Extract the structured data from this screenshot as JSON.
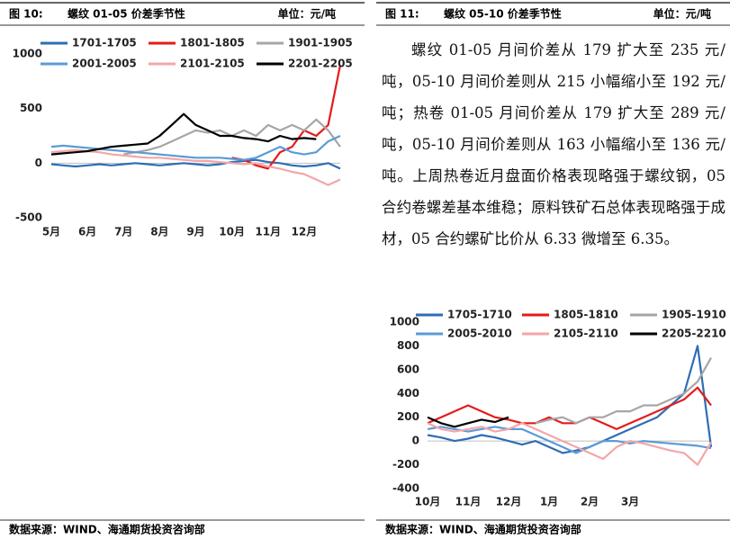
{
  "panels": [
    {
      "figure": "图 10:",
      "title": "螺纹 01-05 价差季节性",
      "unit": "单位：元/吨",
      "source": "数据来源：WIND、海通期货投资咨询部"
    },
    {
      "figure": "图 11:",
      "title": "螺纹 05-10 价差季节性",
      "unit": "单位：元/吨",
      "source": "数据来源：WIND、海通期货投资咨询部"
    }
  ],
  "paragraph": "螺纹 01-05 月间价差从 179 扩大至 235 元/吨，05-10 月间价差则从 215 小幅缩小至 192 元/吨；热卷 01-05 月间价差从 179 扩大至 289 元/吨，05-10 月间价差则从 163 小幅缩小至 136 元/吨。上周热卷近月盘面价格表现略强于螺纹钢，05 合约卷螺差基本维稳；原料铁矿石总体表现略强于成材，05 合约螺矿比价从 6.33 微增至 6.35。",
  "chart_data": [
    {
      "type": "line",
      "categories": [
        "5月",
        null,
        null,
        "6月",
        null,
        null,
        "7月",
        null,
        null,
        "8月",
        null,
        null,
        "9月",
        null,
        null,
        "10月",
        null,
        null,
        "11月",
        null,
        null,
        "12月",
        null,
        null,
        null
      ],
      "ylim": [
        -500,
        1000
      ],
      "yticks": [
        -500,
        0,
        500,
        1000
      ],
      "series": [
        {
          "name": "1701-1705",
          "color": "#2e6db4",
          "values": [
            -10,
            -20,
            -30,
            -20,
            -10,
            -20,
            -10,
            0,
            -10,
            -20,
            -10,
            0,
            -10,
            -20,
            -10,
            10,
            20,
            30,
            10,
            0,
            -20,
            -30,
            -20,
            0,
            -50
          ]
        },
        {
          "name": "1801-1805",
          "color": "#e51b1b",
          "values": [
            null,
            null,
            null,
            null,
            null,
            null,
            null,
            null,
            null,
            null,
            null,
            null,
            null,
            null,
            null,
            50,
            30,
            -20,
            -50,
            100,
            150,
            300,
            250,
            350,
            900
          ]
        },
        {
          "name": "1901-1905",
          "color": "#a6a6a6",
          "values": [
            null,
            null,
            null,
            null,
            null,
            null,
            80,
            100,
            120,
            150,
            200,
            250,
            300,
            280,
            300,
            250,
            300,
            250,
            350,
            300,
            350,
            300,
            400,
            300,
            150
          ]
        },
        {
          "name": "2001-2005",
          "color": "#5b9bd5",
          "values": [
            150,
            160,
            150,
            140,
            130,
            120,
            110,
            100,
            90,
            80,
            70,
            60,
            50,
            50,
            50,
            40,
            30,
            50,
            100,
            150,
            100,
            80,
            100,
            200,
            250
          ]
        },
        {
          "name": "2101-2105",
          "color": "#f4a6a8",
          "values": [
            100,
            110,
            120,
            110,
            100,
            80,
            70,
            60,
            50,
            50,
            40,
            30,
            20,
            20,
            10,
            0,
            -10,
            0,
            -30,
            -50,
            -80,
            -100,
            -150,
            -200,
            -150
          ]
        },
        {
          "name": "2201-2205",
          "color": "#000000",
          "values": [
            80,
            90,
            100,
            110,
            130,
            150,
            160,
            170,
            180,
            250,
            350,
            450,
            350,
            300,
            250,
            250,
            230,
            220,
            200,
            250,
            220,
            230,
            220,
            null,
            null
          ]
        }
      ]
    },
    {
      "type": "line",
      "categories": [
        "10月",
        null,
        null,
        "11月",
        null,
        null,
        "12月",
        null,
        null,
        "1月",
        null,
        null,
        "2月",
        null,
        null,
        "3月",
        null,
        null,
        null,
        null,
        null,
        null
      ],
      "ylim": [
        -400,
        1000
      ],
      "yticks": [
        -400,
        -200,
        0,
        200,
        400,
        600,
        800,
        1000
      ],
      "series": [
        {
          "name": "1705-1710",
          "color": "#2e6db4",
          "values": [
            50,
            30,
            0,
            20,
            50,
            30,
            0,
            -30,
            0,
            -50,
            -100,
            -80,
            -50,
            0,
            50,
            100,
            150,
            200,
            300,
            400,
            800,
            -50
          ]
        },
        {
          "name": "1805-1810",
          "color": "#e51b1b",
          "values": [
            150,
            200,
            250,
            300,
            250,
            200,
            180,
            150,
            150,
            200,
            150,
            150,
            200,
            150,
            100,
            150,
            200,
            250,
            300,
            350,
            450,
            300
          ]
        },
        {
          "name": "1905-1910",
          "color": "#a6a6a6",
          "values": [
            null,
            null,
            null,
            null,
            null,
            null,
            null,
            null,
            150,
            180,
            200,
            150,
            200,
            200,
            250,
            250,
            300,
            300,
            350,
            400,
            500,
            700
          ]
        },
        {
          "name": "2005-2010",
          "color": "#5b9bd5",
          "values": [
            100,
            120,
            100,
            80,
            100,
            120,
            100,
            100,
            50,
            0,
            -50,
            -100,
            -50,
            0,
            0,
            -20,
            0,
            -10,
            -20,
            -30,
            -40,
            -60
          ]
        },
        {
          "name": "2105-2110",
          "color": "#f4a6a8",
          "values": [
            150,
            100,
            80,
            100,
            120,
            80,
            100,
            150,
            100,
            50,
            0,
            -50,
            -100,
            -150,
            -50,
            0,
            -20,
            -50,
            -80,
            -100,
            -200,
            -10
          ]
        },
        {
          "name": "2205-2210",
          "color": "#000000",
          "values": [
            200,
            150,
            120,
            150,
            180,
            160,
            200,
            null,
            null,
            null,
            null,
            null,
            null,
            null,
            null,
            null,
            null,
            null,
            null,
            null,
            null,
            null
          ]
        }
      ]
    }
  ]
}
